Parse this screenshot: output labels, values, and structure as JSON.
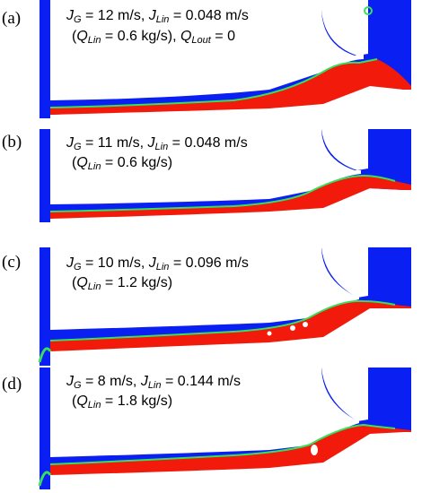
{
  "colors": {
    "gas": "#0a1ff2",
    "liquid": "#f21a0a",
    "interface": "#37e05c",
    "wall": "#ffffff"
  },
  "panels": [
    {
      "label": "(a)",
      "jg": "12 m/s",
      "jlin": "0.048 m/s",
      "qlin": "0.6 kg/s",
      "extra": "Q",
      "extra_sub": "Lout",
      "extra_val": " = 0"
    },
    {
      "label": "(b)",
      "jg": "11 m/s",
      "jlin": "0.048 m/s",
      "qlin": "0.6 kg/s"
    },
    {
      "label": "(c)",
      "jg": "10 m/s",
      "jlin": "0.096 m/s",
      "qlin": "1.2 kg/s"
    },
    {
      "label": "(d)",
      "jg": "8 m/s",
      "jlin": "0.144 m/s",
      "qlin": "1.8 kg/s"
    }
  ],
  "symbols": {
    "J": "J",
    "G": "G",
    "Lin": "Lin",
    "Q": "Q",
    "eq": " = ",
    "comma": ", ",
    "open": "(",
    "close": ")"
  }
}
